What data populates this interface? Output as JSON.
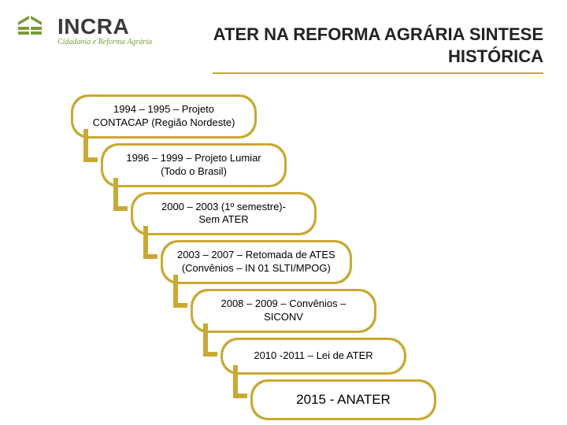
{
  "logo": {
    "title": "INCRA",
    "subtitle": "Cidadania e Reforma Agrária",
    "icon_color": "#7a9a3c",
    "title_color": "#3a3a3a"
  },
  "header": {
    "title_line1": "ATER NA REFORMA AGRÁRIA SINTESE",
    "title_line2": "HISTÓRICA",
    "underline_color": "#c9a933",
    "fontsize": 22
  },
  "timeline": {
    "type": "flowchart",
    "accent_color": "#c9a933",
    "pill_bg": "#ffffff",
    "pill_text_color": "#000000",
    "pill_fontsize": 13,
    "connector_width": 6,
    "step_indent": 38,
    "steps": [
      {
        "line1": "1994 – 1995 – Projeto",
        "line2": "CONTACAP (Região Nordeste)"
      },
      {
        "line1": "1996 – 1999 – Projeto Lumiar",
        "line2": "(Todo o Brasil)"
      },
      {
        "line1": "2000 – 2003 (1º semestre)-",
        "line2": "Sem ATER"
      },
      {
        "line1": "2003 – 2007 – Retomada de ATES",
        "line2": "(Convênios – IN 01 SLTI/MPOG)"
      },
      {
        "line1": "2008 – 2009 – Convênios –",
        "line2": "SICONV"
      },
      {
        "line1": "2010 -2011 – Lei de ATER",
        "line2": ""
      },
      {
        "line1": "2015 -  ANATER",
        "line2": ""
      }
    ]
  }
}
